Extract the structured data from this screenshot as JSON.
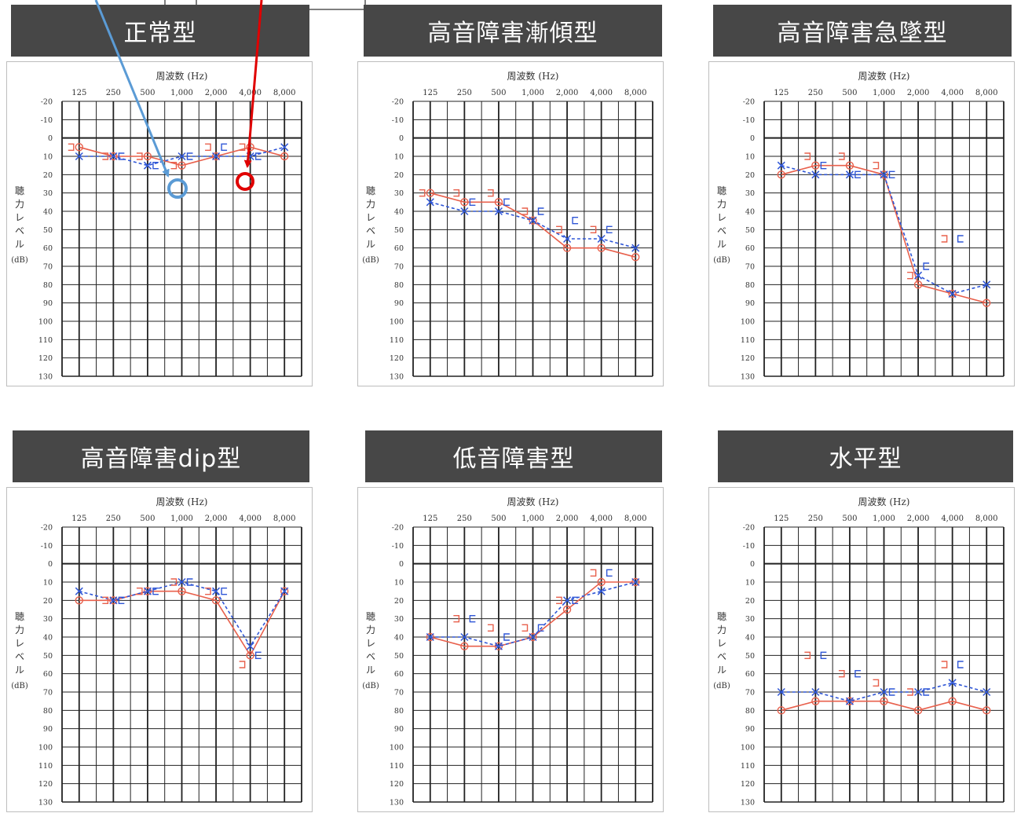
{
  "colors": {
    "banner_bg": "#474747",
    "banner_text": "#ffffff",
    "right_ear": "#e8604c",
    "left_ear": "#2f56d6",
    "callout_blue": "#5b9bd5",
    "callout_red": "#e00000"
  },
  "axis_text": {
    "freq_title": "周波数 (Hz)",
    "freq_ticks": [
      "125",
      "250",
      "500",
      "1,000",
      "2,000",
      "4,000",
      "8,000"
    ],
    "ylabel_chars": [
      "聴",
      "力",
      "レ",
      "ベ",
      "ル"
    ],
    "ylabel_unit": "(dB)",
    "y_ticks": [
      "-20",
      "-10",
      "0",
      "10",
      "20",
      "30",
      "40",
      "50",
      "60",
      "70",
      "80",
      "90",
      "100",
      "110",
      "120",
      "130"
    ]
  },
  "chart_data": [
    {
      "type": "line",
      "title": "正常型",
      "x": [
        125,
        250,
        500,
        1000,
        2000,
        4000,
        8000
      ],
      "ylim": [
        -20,
        130
      ],
      "y_inverted": true,
      "series": [
        {
          "marker": "circle",
          "values": [
            5,
            10,
            10,
            15,
            10,
            5,
            10
          ],
          "color": "#e8604c",
          "style": "solid"
        },
        {
          "marker": "cross",
          "values": [
            10,
            10,
            15,
            10,
            10,
            10,
            5
          ],
          "color": "#2f56d6",
          "style": "dashed"
        },
        {
          "marker": "bracket-right",
          "values": [
            5,
            10,
            10,
            15,
            5,
            5,
            null
          ],
          "color": "#e8604c"
        },
        {
          "marker": "bracket-left",
          "values": [
            null,
            10,
            15,
            10,
            5,
            10,
            null
          ],
          "color": "#2f56d6"
        }
      ]
    },
    {
      "type": "line",
      "title": "高音障害漸傾型",
      "x": [
        125,
        250,
        500,
        1000,
        2000,
        4000,
        8000
      ],
      "ylim": [
        -20,
        130
      ],
      "y_inverted": true,
      "series": [
        {
          "marker": "circle",
          "values": [
            30,
            35,
            35,
            45,
            60,
            60,
            65
          ],
          "color": "#e8604c",
          "style": "solid"
        },
        {
          "marker": "cross",
          "values": [
            35,
            40,
            40,
            45,
            55,
            55,
            60
          ],
          "color": "#2f56d6",
          "style": "dashed"
        },
        {
          "marker": "bracket-right",
          "values": [
            30,
            30,
            30,
            40,
            50,
            50,
            null
          ],
          "color": "#e8604c"
        },
        {
          "marker": "bracket-left",
          "values": [
            null,
            35,
            35,
            40,
            45,
            50,
            null
          ],
          "color": "#2f56d6"
        }
      ]
    },
    {
      "type": "line",
      "title": "高音障害急墜型",
      "x": [
        125,
        250,
        500,
        1000,
        2000,
        4000,
        8000
      ],
      "ylim": [
        -20,
        130
      ],
      "y_inverted": true,
      "series": [
        {
          "marker": "circle",
          "values": [
            20,
            15,
            15,
            20,
            80,
            85,
            90
          ],
          "color": "#e8604c",
          "style": "solid"
        },
        {
          "marker": "cross",
          "values": [
            15,
            20,
            20,
            20,
            75,
            85,
            80
          ],
          "color": "#2f56d6",
          "style": "dashed"
        },
        {
          "marker": "bracket-right",
          "values": [
            null,
            10,
            10,
            15,
            75,
            55,
            null
          ],
          "color": "#e8604c"
        },
        {
          "marker": "bracket-left",
          "values": [
            null,
            15,
            20,
            20,
            70,
            55,
            null
          ],
          "color": "#2f56d6"
        }
      ]
    },
    {
      "type": "line",
      "title": "高音障害dip型",
      "x": [
        125,
        250,
        500,
        1000,
        2000,
        4000,
        8000
      ],
      "ylim": [
        -20,
        130
      ],
      "y_inverted": true,
      "series": [
        {
          "marker": "circle",
          "values": [
            20,
            20,
            15,
            15,
            20,
            50,
            15
          ],
          "color": "#e8604c",
          "style": "solid"
        },
        {
          "marker": "cross",
          "values": [
            15,
            20,
            15,
            10,
            15,
            45,
            15
          ],
          "color": "#2f56d6",
          "style": "dashed"
        },
        {
          "marker": "bracket-right",
          "values": [
            null,
            20,
            15,
            10,
            15,
            55,
            null
          ],
          "color": "#e8604c"
        },
        {
          "marker": "bracket-left",
          "values": [
            null,
            20,
            15,
            10,
            15,
            50,
            null
          ],
          "color": "#2f56d6"
        }
      ]
    },
    {
      "type": "line",
      "title": "低音障害型",
      "x": [
        125,
        250,
        500,
        1000,
        2000,
        4000,
        8000
      ],
      "ylim": [
        -20,
        130
      ],
      "y_inverted": true,
      "series": [
        {
          "marker": "circle",
          "values": [
            40,
            45,
            45,
            40,
            25,
            10,
            10
          ],
          "color": "#e8604c",
          "style": "solid"
        },
        {
          "marker": "cross",
          "values": [
            40,
            40,
            45,
            40,
            20,
            15,
            10
          ],
          "color": "#2f56d6",
          "style": "dashed"
        },
        {
          "marker": "bracket-right",
          "values": [
            null,
            30,
            35,
            35,
            20,
            5,
            null
          ],
          "color": "#e8604c"
        },
        {
          "marker": "bracket-left",
          "values": [
            null,
            30,
            40,
            35,
            20,
            5,
            null
          ],
          "color": "#2f56d6"
        }
      ]
    },
    {
      "type": "line",
      "title": "水平型",
      "x": [
        125,
        250,
        500,
        1000,
        2000,
        4000,
        8000
      ],
      "ylim": [
        -20,
        130
      ],
      "y_inverted": true,
      "series": [
        {
          "marker": "circle",
          "values": [
            80,
            75,
            75,
            75,
            80,
            75,
            80
          ],
          "color": "#e8604c",
          "style": "solid"
        },
        {
          "marker": "cross",
          "values": [
            70,
            70,
            75,
            70,
            70,
            65,
            70
          ],
          "color": "#2f56d6",
          "style": "dashed"
        },
        {
          "marker": "bracket-right",
          "values": [
            null,
            50,
            60,
            65,
            70,
            55,
            null
          ],
          "color": "#e8604c"
        },
        {
          "marker": "bracket-left",
          "values": [
            null,
            50,
            60,
            70,
            70,
            55,
            null
          ],
          "color": "#2f56d6"
        }
      ]
    }
  ]
}
